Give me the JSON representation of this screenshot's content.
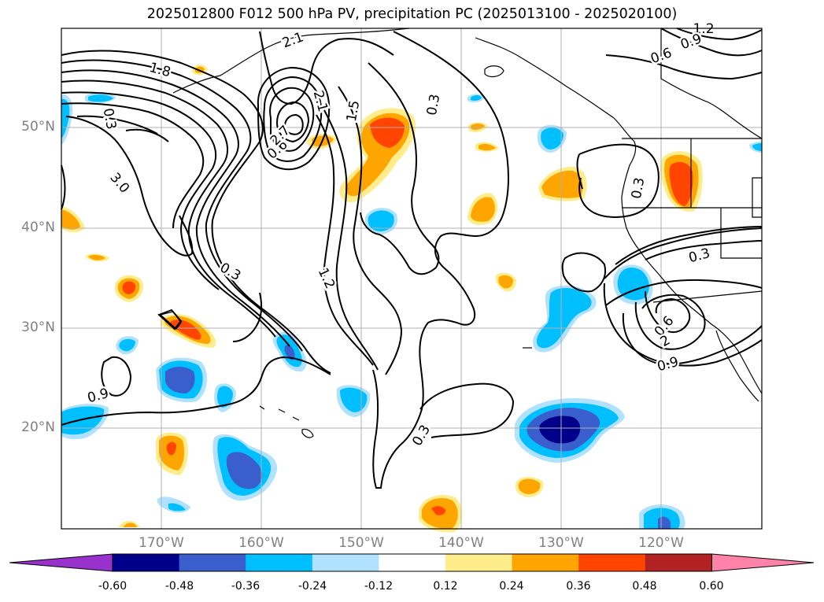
{
  "title": "2025012800 F012 500 hPa PV, precipitation PC (2025013100 - 2025020100)",
  "map": {
    "lat_ticks": [
      "50°N",
      "40°N",
      "30°N",
      "20°N"
    ],
    "lon_ticks": [
      "170°W",
      "160°W",
      "150°W",
      "140°W",
      "130°W",
      "120°W"
    ],
    "gridlines": true
  },
  "pv_contour_labels": [
    "1.2",
    "0.9",
    "0.6",
    "1.8",
    "2.1",
    "0.3",
    "2.1",
    "1.5",
    "0.6",
    "2.7",
    "3.0",
    "0.3",
    "1.2",
    "0.9",
    "0.3",
    "0.3",
    "0.3",
    "0.6",
    "2",
    "0.9",
    "0.3"
  ],
  "colorbar": {
    "labels": [
      "-0.60",
      "-0.48",
      "-0.36",
      "-0.24",
      "-0.12",
      "0.12",
      "0.24",
      "0.36",
      "0.48",
      "0.60"
    ],
    "colors": {
      "below": "#9932cc",
      "c1": "#00008b",
      "c2": "#3a5fcd",
      "c3": "#00bfff",
      "c4": "#b0e2ff",
      "c5": "#ffffff",
      "c6": "#ffec8b",
      "c7": "#ffa500",
      "c8": "#ff4500",
      "c9": "#b22222",
      "above": "#ff82ab"
    }
  }
}
